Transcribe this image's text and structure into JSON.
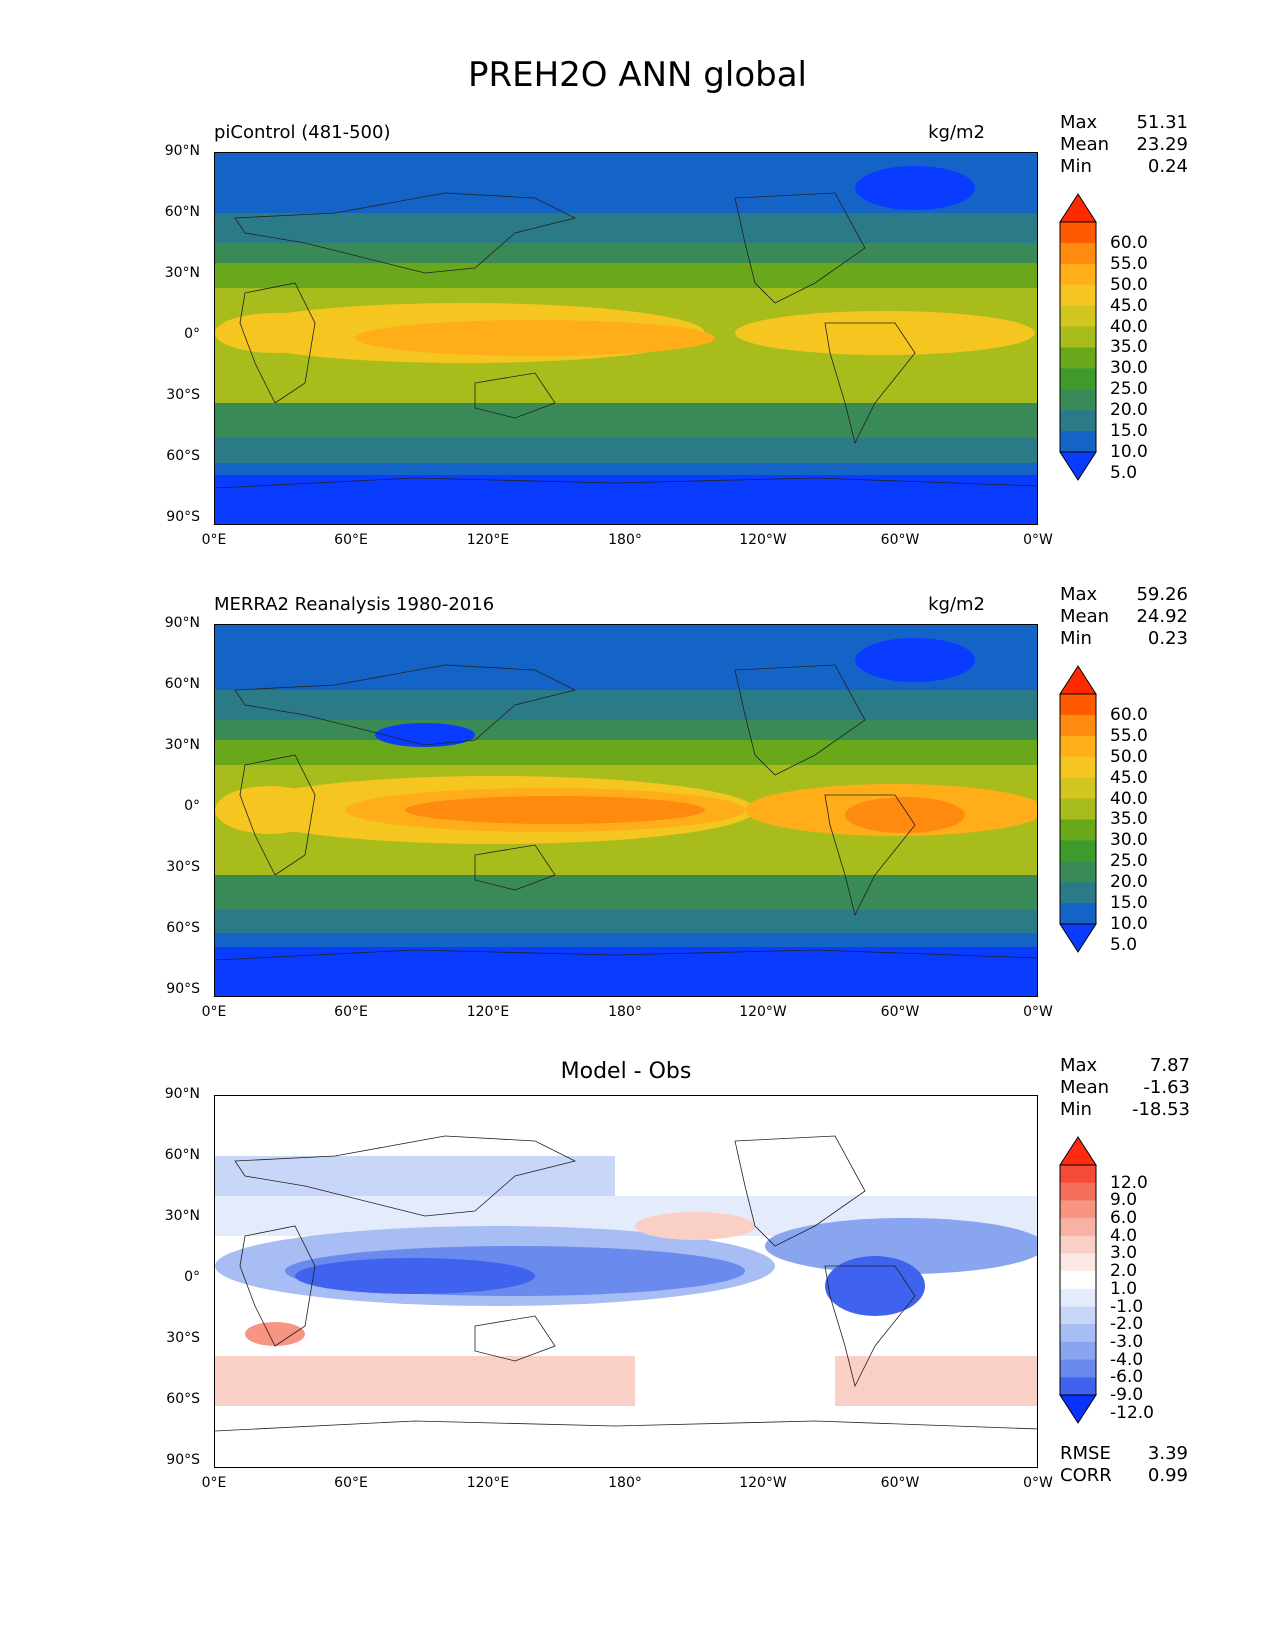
{
  "title": "PREH2O ANN global",
  "axes": {
    "lat_labels": [
      "90°N",
      "60°N",
      "30°N",
      "0°",
      "30°S",
      "60°S",
      "90°S"
    ],
    "lon_labels": [
      "0°E",
      "60°E",
      "120°E",
      "180°",
      "120°W",
      "60°W",
      "0°W"
    ]
  },
  "panels": [
    {
      "title": "piControl (481-500)",
      "unit": "kg/m2",
      "stats": {
        "max_label": "Max",
        "max": "51.31",
        "mean_label": "Mean",
        "mean": "23.29",
        "min_label": "Min",
        "min": "0.24"
      },
      "colorbar": [
        "60.0",
        "55.0",
        "50.0",
        "45.0",
        "40.0",
        "35.0",
        "30.0",
        "25.0",
        "20.0",
        "15.0",
        "10.0",
        "5.0"
      ],
      "colors": [
        "#ff2a00",
        "#ff5a00",
        "#ff8a10",
        "#ffae1a",
        "#f5c520",
        "#d3c51f",
        "#a8bc1c",
        "#6aa81b",
        "#3f9a2c",
        "#3a8a58",
        "#2a7a88",
        "#1464c8",
        "#0a3cff"
      ]
    },
    {
      "title": "MERRA2 Reanalysis 1980-2016",
      "unit": "kg/m2",
      "stats": {
        "max_label": "Max",
        "max": "59.26",
        "mean_label": "Mean",
        "mean": "24.92",
        "min_label": "Min",
        "min": "0.23"
      },
      "colorbar": [
        "60.0",
        "55.0",
        "50.0",
        "45.0",
        "40.0",
        "35.0",
        "30.0",
        "25.0",
        "20.0",
        "15.0",
        "10.0",
        "5.0"
      ],
      "colors": [
        "#ff2a00",
        "#ff5a00",
        "#ff8a10",
        "#ffae1a",
        "#f5c520",
        "#d3c51f",
        "#a8bc1c",
        "#6aa81b",
        "#3f9a2c",
        "#3a8a58",
        "#2a7a88",
        "#1464c8",
        "#0a3cff"
      ]
    },
    {
      "title": "Model - Obs",
      "unit": "",
      "stats": {
        "max_label": "Max",
        "max": "7.87",
        "mean_label": "Mean",
        "mean": "-1.63",
        "min_label": "Min",
        "min": "-18.53"
      },
      "colorbar": [
        "12.0",
        "9.0",
        "6.0",
        "4.0",
        "3.0",
        "2.0",
        "1.0",
        "-1.0",
        "-2.0",
        "-3.0",
        "-4.0",
        "-6.0",
        "-9.0",
        "-12.0"
      ],
      "colors": [
        "#ff2a12",
        "#f44a36",
        "#f5705c",
        "#f79482",
        "#f8b2a4",
        "#fad0c6",
        "#fde9e4",
        "#ffffff",
        "#e4ebfb",
        "#c8d6f7",
        "#a7bdf3",
        "#8aa5ef",
        "#6a8aee",
        "#3f63ee",
        "#0a32ff"
      ],
      "extra": {
        "rmse_label": "RMSE",
        "rmse": "3.39",
        "corr_label": "CORR",
        "corr": "0.99"
      }
    }
  ]
}
